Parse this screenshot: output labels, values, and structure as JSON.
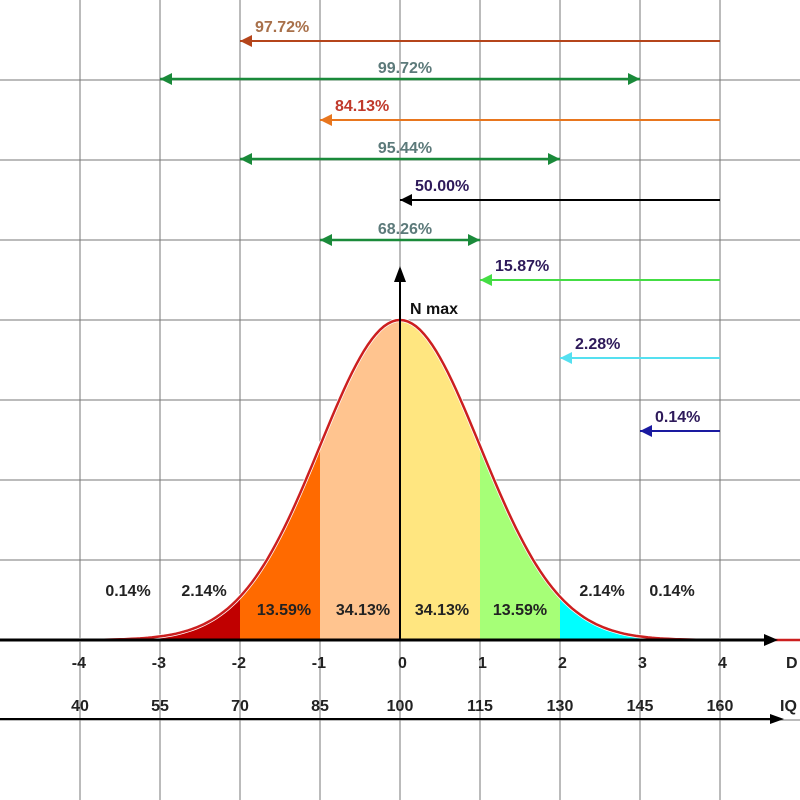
{
  "chart_data": {
    "type": "area",
    "title": "",
    "xlabel": "D",
    "ylabel": "N max",
    "xlim": [
      -5,
      5
    ],
    "grid": true,
    "sigma_ticks": [
      "-4",
      "-3",
      "-2",
      "-1",
      "0",
      "1",
      "2",
      "3",
      "4"
    ],
    "sigma_tick_values": [
      -4,
      -3,
      -2,
      -1,
      0,
      1,
      2,
      3,
      4
    ],
    "iq_label": "IQ",
    "iq_ticks": [
      "40",
      "55",
      "70",
      "85",
      "100",
      "115",
      "130",
      "145",
      "160"
    ],
    "segments": [
      {
        "from": -4,
        "to": -3,
        "label": "0.14%",
        "value": 0.14,
        "color": "#000000"
      },
      {
        "from": -3,
        "to": -2,
        "label": "2.14%",
        "value": 2.14,
        "color": "#c00000"
      },
      {
        "from": -2,
        "to": -1,
        "label": "13.59%",
        "value": 13.59,
        "color": "#ff6a00"
      },
      {
        "from": -1,
        "to": 0,
        "label": "34.13%",
        "value": 34.13,
        "color": "#ffc48f"
      },
      {
        "from": 0,
        "to": 1,
        "label": "34.13%",
        "value": 34.13,
        "color": "#ffe680"
      },
      {
        "from": 1,
        "to": 2,
        "label": "13.59%",
        "value": 13.59,
        "color": "#a6ff77"
      },
      {
        "from": 2,
        "to": 3,
        "label": "2.14%",
        "value": 2.14,
        "color": "#00ffff"
      },
      {
        "from": 3,
        "to": 4,
        "label": "0.14%",
        "value": 0.14,
        "color": "#cdf6f6"
      }
    ],
    "cumulative_arrows": [
      {
        "label": "97.72%",
        "from": 4,
        "to": -2,
        "double": false,
        "color": "#b5451b",
        "label_color": "#a8704a"
      },
      {
        "label": "99.72%",
        "from": -3,
        "to": 3,
        "double": true,
        "color": "#1a8a3a",
        "label_color": "#5c7a7a"
      },
      {
        "label": "84.13%",
        "from": 4,
        "to": -1,
        "double": false,
        "color": "#e8761e",
        "label_color": "#c0392b"
      },
      {
        "label": "95.44%",
        "from": -2,
        "to": 2,
        "double": true,
        "color": "#1a8a3a",
        "label_color": "#5c7a7a"
      },
      {
        "label": "50.00%",
        "from": 4,
        "to": 0,
        "double": false,
        "color": "#000000",
        "label_color": "#2e1a5a"
      },
      {
        "label": "68.26%",
        "from": -1,
        "to": 1,
        "double": true,
        "color": "#1a8a3a",
        "label_color": "#5c7a7a"
      },
      {
        "label": "15.87%",
        "from": 4,
        "to": 1,
        "double": false,
        "color": "#44dd44",
        "label_color": "#2e1a5a"
      },
      {
        "label": "2.28%",
        "from": 4,
        "to": 2,
        "double": false,
        "color": "#55e0f0",
        "label_color": "#2e1a5a"
      },
      {
        "label": "0.14%",
        "from": 4,
        "to": 3,
        "double": false,
        "color": "#1a1aa0",
        "label_color": "#2e1a5a"
      }
    ],
    "curve_color": "#cc1f1f"
  }
}
